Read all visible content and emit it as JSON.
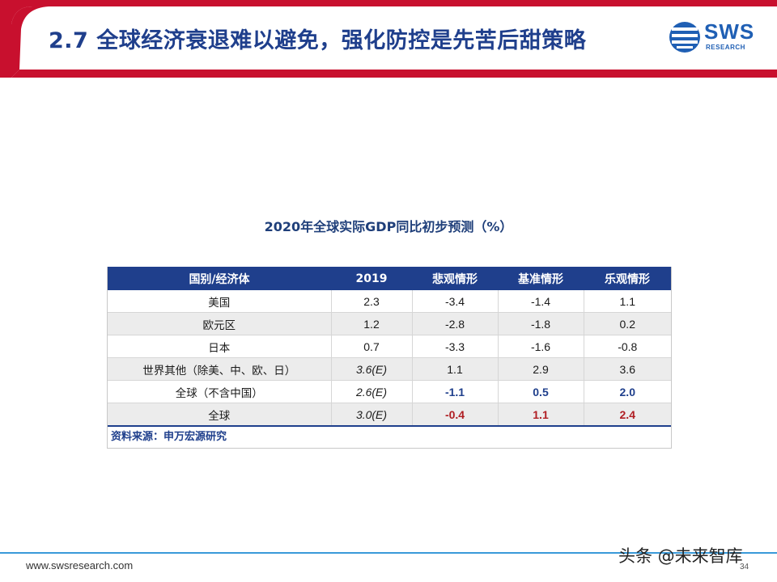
{
  "header": {
    "title": "2.7 全球经济衰退难以避免，强化防控是先苦后甜策略",
    "logo_text": "SWS",
    "logo_sub": "RESEARCH",
    "colors": {
      "title": "#1f3f8c",
      "band_red": "#c8102e"
    }
  },
  "table": {
    "title": "2020年全球实际GDP同比初步预测（%）",
    "headers": [
      "国别/经济体",
      "2019",
      "悲观情形",
      "基准情形",
      "乐观情形"
    ],
    "rows": [
      [
        "美国",
        "2.3",
        "-3.4",
        "-1.4",
        "1.1"
      ],
      [
        "欧元区",
        "1.2",
        "-2.8",
        "-1.8",
        "0.2"
      ],
      [
        "日本",
        "0.7",
        "-3.3",
        "-1.6",
        "-0.8"
      ],
      [
        "世界其他（除美、中、欧、日）",
        "3.6(E)",
        "1.1",
        "2.9",
        "3.6"
      ],
      [
        "全球（不含中国）",
        "2.6(E)",
        "-1.1",
        "0.5",
        "2.0"
      ],
      [
        "全球",
        "3.0(E)",
        "-0.4",
        "1.1",
        "2.4"
      ]
    ],
    "source": "资料来源：申万宏源研究",
    "colors": {
      "header_bg": "#1f3f8c",
      "highlight_blue": "#1f3f8c",
      "highlight_red": "#b01e23"
    }
  },
  "footer": {
    "url": "www.swsresearch.com",
    "page_number": "34",
    "watermark": "头条 @未来智库"
  }
}
